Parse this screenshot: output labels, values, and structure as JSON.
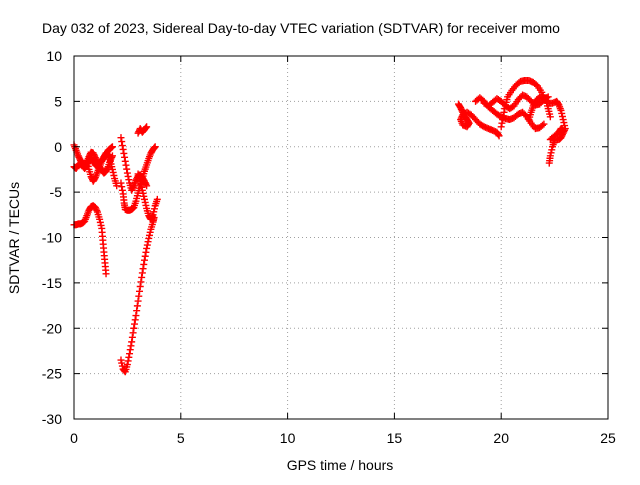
{
  "chart_data": {
    "type": "scatter",
    "title": "Day 032 of 2023, Sidereal Day-to-day VTEC variation (SDTVAR) for receiver momo",
    "xlabel": "GPS time / hours",
    "ylabel": "SDTVAR / TECUs",
    "xlim": [
      0,
      25
    ],
    "ylim": [
      -30,
      10
    ],
    "xticks": [
      0,
      5,
      10,
      15,
      20,
      25
    ],
    "yticks": [
      -30,
      -25,
      -20,
      -15,
      -10,
      -5,
      0,
      5,
      10
    ],
    "grid": true,
    "marker": "+",
    "color": "#ff0000",
    "series": [
      {
        "name": "SDTVAR",
        "segments": [
          [
            [
              0.0,
              -2.2
            ],
            [
              0.1,
              -2.4
            ],
            [
              0.2,
              -2.0
            ],
            [
              0.3,
              -1.8
            ],
            [
              0.4,
              -2.1
            ],
            [
              0.5,
              -2.4
            ],
            [
              0.6,
              -2.0
            ],
            [
              0.7,
              -1.5
            ],
            [
              0.8,
              -1.3
            ],
            [
              0.9,
              -1.6
            ],
            [
              1.0,
              -2.0
            ],
            [
              1.1,
              -2.2
            ],
            [
              1.2,
              -1.8
            ],
            [
              1.3,
              -1.5
            ],
            [
              1.4,
              -1.2
            ],
            [
              1.5,
              -0.8
            ],
            [
              1.6,
              -0.4
            ],
            [
              1.7,
              -0.2
            ],
            [
              1.8,
              0.0
            ]
          ],
          [
            [
              0.0,
              0.2
            ],
            [
              0.1,
              -0.4
            ],
            [
              0.2,
              -1.0
            ],
            [
              0.3,
              -1.5
            ],
            [
              0.4,
              -1.8
            ],
            [
              0.5,
              -2.0
            ],
            [
              0.6,
              -1.7
            ],
            [
              0.7,
              -1.1
            ],
            [
              0.8,
              -0.6
            ],
            [
              0.9,
              -0.7
            ],
            [
              1.0,
              -1.2
            ],
            [
              1.1,
              -1.7
            ],
            [
              1.2,
              -2.2
            ],
            [
              1.3,
              -2.6
            ],
            [
              1.4,
              -2.9
            ],
            [
              1.5,
              -2.7
            ],
            [
              1.6,
              -2.2
            ],
            [
              1.7,
              -1.5
            ],
            [
              1.8,
              -1.0
            ]
          ],
          [
            [
              0.6,
              -1.5
            ],
            [
              0.7,
              -2.5
            ],
            [
              0.8,
              -3.3
            ],
            [
              0.9,
              -3.8
            ],
            [
              1.0,
              -3.4
            ],
            [
              1.1,
              -2.8
            ],
            [
              1.2,
              -2.2
            ],
            [
              1.3,
              -1.6
            ],
            [
              1.4,
              -1.1
            ],
            [
              1.5,
              -0.7
            ],
            [
              1.6,
              -0.9
            ],
            [
              1.7,
              -1.6
            ],
            [
              1.8,
              -2.5
            ],
            [
              1.9,
              -3.5
            ],
            [
              2.0,
              -4.3
            ]
          ],
          [
            [
              0.0,
              -8.6
            ],
            [
              0.1,
              -8.6
            ],
            [
              0.2,
              -8.5
            ],
            [
              0.3,
              -8.5
            ],
            [
              0.4,
              -8.4
            ],
            [
              0.5,
              -8.2
            ],
            [
              0.6,
              -7.6
            ],
            [
              0.7,
              -7.0
            ],
            [
              0.8,
              -6.6
            ],
            [
              0.9,
              -6.5
            ],
            [
              1.0,
              -6.7
            ],
            [
              1.1,
              -7.2
            ],
            [
              1.2,
              -8.0
            ],
            [
              1.3,
              -9.0
            ],
            [
              1.35,
              -10.3
            ],
            [
              1.4,
              -11.6
            ],
            [
              1.45,
              -12.8
            ],
            [
              1.5,
              -14.0
            ]
          ],
          [
            [
              2.2,
              1.0
            ],
            [
              2.3,
              -0.3
            ],
            [
              2.4,
              -1.6
            ],
            [
              2.5,
              -2.9
            ],
            [
              2.6,
              -4.0
            ],
            [
              2.7,
              -4.8
            ],
            [
              2.8,
              -4.3
            ],
            [
              2.9,
              -3.7
            ],
            [
              3.0,
              -3.2
            ],
            [
              3.1,
              -3.1
            ],
            [
              3.2,
              -3.4
            ],
            [
              3.3,
              -3.8
            ],
            [
              3.4,
              -4.3
            ]
          ],
          [
            [
              2.2,
              -4.0
            ],
            [
              2.3,
              -5.2
            ],
            [
              2.35,
              -6.2
            ],
            [
              2.4,
              -6.9
            ],
            [
              2.5,
              -7.0
            ],
            [
              2.6,
              -7.0
            ],
            [
              2.7,
              -6.9
            ],
            [
              2.8,
              -6.7
            ],
            [
              2.9,
              -6.0
            ],
            [
              3.0,
              -5.1
            ],
            [
              3.1,
              -4.3
            ],
            [
              3.2,
              -3.5
            ],
            [
              3.3,
              -2.7
            ],
            [
              3.4,
              -2.0
            ],
            [
              3.5,
              -1.3
            ],
            [
              3.6,
              -0.7
            ],
            [
              3.7,
              -0.3
            ],
            [
              3.8,
              0.0
            ]
          ],
          [
            [
              3.0,
              1.5
            ],
            [
              3.1,
              2.0
            ],
            [
              3.2,
              1.6
            ],
            [
              3.3,
              1.9
            ],
            [
              3.4,
              2.2
            ]
          ],
          [
            [
              3.0,
              -3.0
            ],
            [
              3.1,
              -3.8
            ],
            [
              3.2,
              -4.8
            ],
            [
              3.3,
              -5.8
            ],
            [
              3.4,
              -6.8
            ],
            [
              3.5,
              -7.6
            ],
            [
              3.6,
              -8.0
            ],
            [
              3.7,
              -7.5
            ],
            [
              3.8,
              -6.5
            ],
            [
              3.9,
              -5.8
            ]
          ],
          [
            [
              2.2,
              -23.5
            ],
            [
              2.3,
              -24.5
            ],
            [
              2.4,
              -24.8
            ],
            [
              2.5,
              -24.0
            ],
            [
              2.6,
              -22.8
            ],
            [
              2.7,
              -21.5
            ],
            [
              2.8,
              -20.0
            ],
            [
              2.9,
              -18.6
            ],
            [
              3.0,
              -17.0
            ],
            [
              3.1,
              -15.4
            ],
            [
              3.2,
              -13.9
            ],
            [
              3.3,
              -12.5
            ],
            [
              3.4,
              -11.2
            ],
            [
              3.5,
              -10.1
            ],
            [
              3.6,
              -9.1
            ],
            [
              3.7,
              -8.3
            ],
            [
              3.75,
              -7.8
            ]
          ],
          [
            [
              18.0,
              4.7
            ],
            [
              18.1,
              4.3
            ],
            [
              18.2,
              3.8
            ],
            [
              18.3,
              3.3
            ],
            [
              18.4,
              3.0
            ],
            [
              18.5,
              2.6
            ],
            [
              18.4,
              2.2
            ],
            [
              18.2,
              2.4
            ],
            [
              18.1,
              3.0
            ],
            [
              18.2,
              3.5
            ],
            [
              18.4,
              3.8
            ],
            [
              18.6,
              3.5
            ],
            [
              18.8,
              3.0
            ],
            [
              19.0,
              2.5
            ],
            [
              19.2,
              2.2
            ],
            [
              19.4,
              2.0
            ],
            [
              19.6,
              1.8
            ],
            [
              19.8,
              1.6
            ],
            [
              19.9,
              1.2
            ]
          ],
          [
            [
              18.8,
              5.0
            ],
            [
              19.0,
              5.4
            ],
            [
              19.2,
              5.0
            ],
            [
              19.4,
              4.4
            ],
            [
              19.6,
              4.0
            ],
            [
              19.8,
              3.6
            ],
            [
              20.0,
              3.3
            ],
            [
              20.2,
              3.1
            ],
            [
              20.4,
              3.0
            ],
            [
              20.6,
              3.2
            ],
            [
              20.8,
              3.6
            ],
            [
              21.0,
              3.8
            ],
            [
              21.2,
              3.3
            ],
            [
              21.4,
              2.6
            ],
            [
              21.6,
              2.0
            ],
            [
              21.8,
              2.1
            ],
            [
              22.0,
              2.5
            ]
          ],
          [
            [
              19.2,
              4.8
            ],
            [
              19.4,
              4.5
            ],
            [
              19.6,
              4.9
            ],
            [
              19.8,
              5.3
            ],
            [
              20.0,
              5.0
            ],
            [
              20.2,
              4.5
            ],
            [
              20.4,
              4.2
            ],
            [
              20.6,
              4.5
            ],
            [
              20.8,
              5.2
            ],
            [
              21.0,
              5.7
            ],
            [
              21.2,
              5.5
            ],
            [
              21.4,
              5.0
            ],
            [
              21.6,
              4.6
            ],
            [
              21.8,
              4.7
            ],
            [
              22.0,
              5.2
            ],
            [
              22.2,
              5.5
            ]
          ],
          [
            [
              20.0,
              2.2
            ],
            [
              20.1,
              3.4
            ],
            [
              20.2,
              4.6
            ],
            [
              20.3,
              5.5
            ],
            [
              20.5,
              6.2
            ],
            [
              20.7,
              6.8
            ],
            [
              20.9,
              7.2
            ],
            [
              21.1,
              7.3
            ],
            [
              21.3,
              7.3
            ],
            [
              21.5,
              7.1
            ],
            [
              21.7,
              6.7
            ],
            [
              21.9,
              6.0
            ],
            [
              22.1,
              5.1
            ],
            [
              22.2,
              4.2
            ],
            [
              22.3,
              3.3
            ]
          ],
          [
            [
              21.3,
              3.0
            ],
            [
              21.4,
              3.8
            ],
            [
              21.5,
              4.5
            ],
            [
              21.6,
              5.0
            ],
            [
              21.8,
              5.5
            ],
            [
              22.0,
              5.3
            ],
            [
              22.2,
              4.8
            ],
            [
              22.4,
              4.8
            ],
            [
              22.6,
              5.0
            ],
            [
              22.7,
              4.6
            ],
            [
              22.8,
              4.0
            ],
            [
              22.9,
              3.0
            ],
            [
              23.0,
              2.0
            ],
            [
              22.9,
              1.5
            ],
            [
              22.8,
              1.0
            ],
            [
              22.7,
              0.8
            ],
            [
              22.5,
              0.7
            ],
            [
              22.4,
              0.0
            ],
            [
              22.3,
              -1.0
            ],
            [
              22.25,
              -1.8
            ]
          ],
          [
            [
              22.3,
              0.8
            ],
            [
              22.5,
              1.2
            ],
            [
              22.7,
              1.6
            ],
            [
              22.8,
              2.0
            ],
            [
              22.9,
              1.8
            ]
          ]
        ]
      }
    ]
  }
}
